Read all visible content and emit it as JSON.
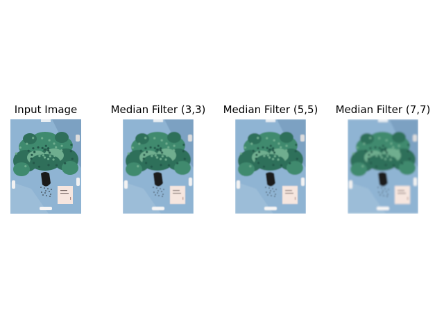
{
  "figure": {
    "panels": [
      {
        "title": "Input Image",
        "blur_level": 0
      },
      {
        "title": "Median Filter (3,3)",
        "blur_level": 0.5
      },
      {
        "title": "Median Filter (5,5)",
        "blur_level": 0.9
      },
      {
        "title": "Median Filter (7,7)",
        "blur_level": 1.3
      }
    ],
    "colors": {
      "background_blue": "#8fb4d3",
      "shadow_blue": "#6f94b8",
      "leaf_dark": "#2f6f5a",
      "leaf_mid": "#3f8a6e",
      "leaf_light": "#6fae8f",
      "soil": "#1a1a1a",
      "card": "#f6e6df"
    }
  }
}
